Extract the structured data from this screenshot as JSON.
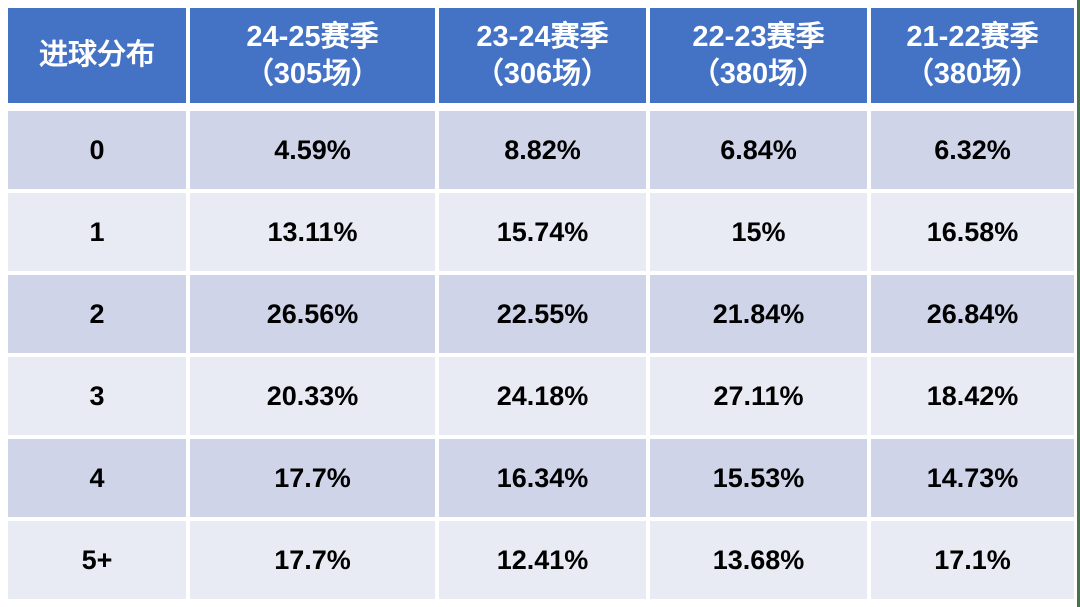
{
  "colors": {
    "header_bg": "#4472c4",
    "header_text": "#ffffff",
    "row_band_dark": "#cfd4e8",
    "row_band_light": "#e9ebf4",
    "body_text": "#000000",
    "page_bg": "#ffffff",
    "right_edge_line": "#46734b"
  },
  "table": {
    "corner_label": "进球分布",
    "season_headers": [
      {
        "season": "24-25赛季",
        "matches": "（305场）"
      },
      {
        "season": "23-24赛季",
        "matches": "（306场）"
      },
      {
        "season": "22-23赛季",
        "matches": "（380场）"
      },
      {
        "season": "21-22赛季",
        "matches": "（380场）"
      }
    ],
    "rows": [
      {
        "label": "0",
        "values": [
          "4.59%",
          "8.82%",
          "6.84%",
          "6.32%"
        ]
      },
      {
        "label": "1",
        "values": [
          "13.11%",
          "15.74%",
          "15%",
          "16.58%"
        ]
      },
      {
        "label": "2",
        "values": [
          "26.56%",
          "22.55%",
          "21.84%",
          "26.84%"
        ]
      },
      {
        "label": "3",
        "values": [
          "20.33%",
          "24.18%",
          "27.11%",
          "18.42%"
        ]
      },
      {
        "label": "4",
        "values": [
          "17.7%",
          "16.34%",
          "15.53%",
          "14.73%"
        ]
      },
      {
        "label": "5+",
        "values": [
          "17.7%",
          "12.41%",
          "13.68%",
          "17.1%"
        ]
      }
    ]
  },
  "chart_data": {
    "type": "table",
    "title": "进球分布",
    "unit": "%",
    "categories": [
      "0",
      "1",
      "2",
      "3",
      "4",
      "5+"
    ],
    "series": [
      {
        "name": "24-25赛季（305场）",
        "values": [
          4.59,
          13.11,
          26.56,
          20.33,
          17.7,
          17.7
        ]
      },
      {
        "name": "23-24赛季（306场）",
        "values": [
          8.82,
          15.74,
          22.55,
          24.18,
          16.34,
          12.41
        ]
      },
      {
        "name": "22-23赛季（380场）",
        "values": [
          6.84,
          15,
          21.84,
          27.11,
          15.53,
          13.68
        ]
      },
      {
        "name": "21-22赛季（380场）",
        "values": [
          6.32,
          16.58,
          26.84,
          18.42,
          14.73,
          17.1
        ]
      }
    ]
  }
}
